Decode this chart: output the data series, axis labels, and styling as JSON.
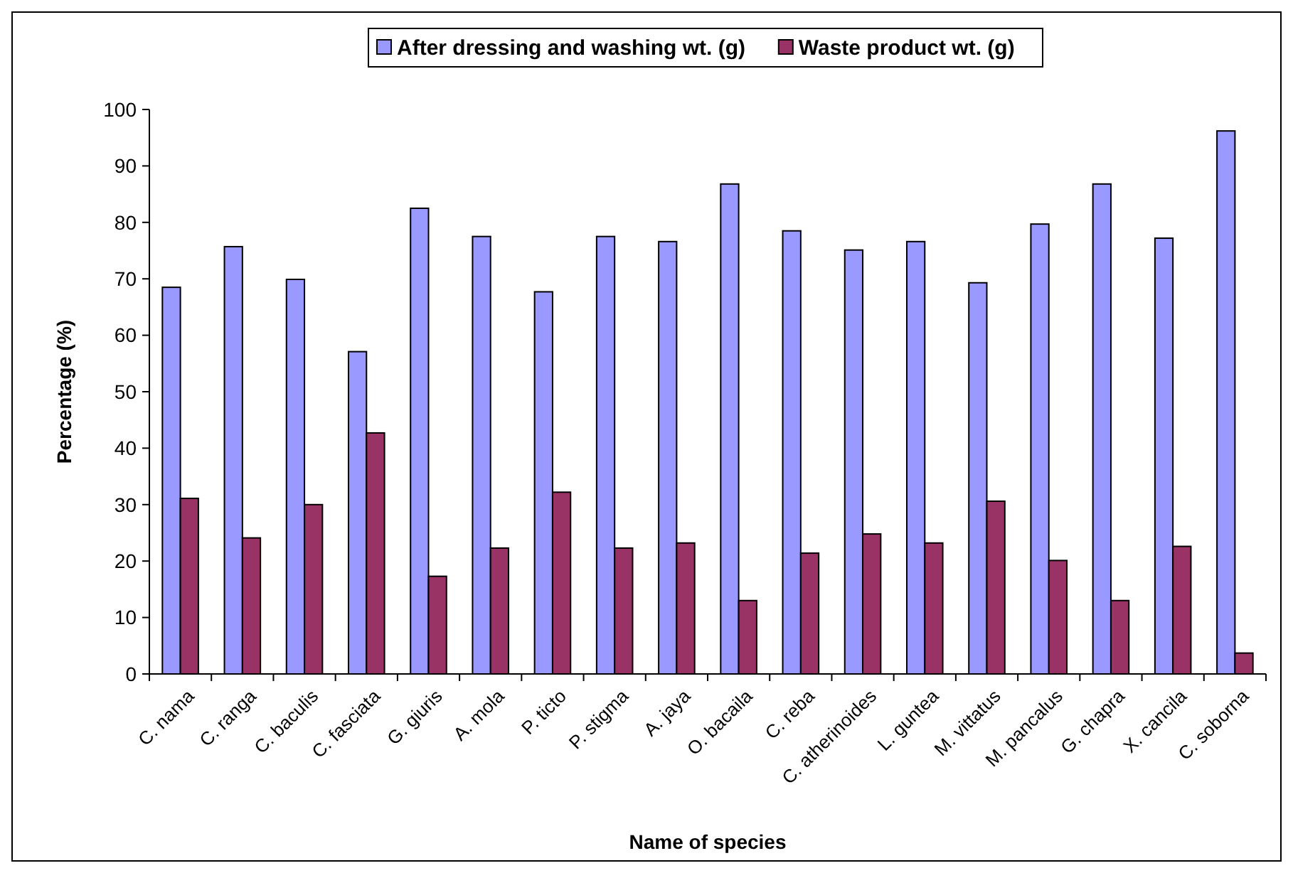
{
  "chart_data": {
    "type": "bar",
    "xlabel": "Name of species",
    "ylabel": "Percentage (%)",
    "categories": [
      "C. nama",
      "C. ranga",
      "C. baculis",
      "C. fasciata",
      "G. giuris",
      "A. mola",
      "P. ticto",
      "P. stigma",
      "A. jaya",
      "O. bacaila",
      "C. reba",
      "C. atherinoides",
      "L. guntea",
      "M. vittatus",
      "M. pancalus",
      "G. chapra",
      "X. cancila",
      "C. soborna"
    ],
    "series": [
      {
        "name": "After dressing and washing wt. (g)",
        "color": "#9999ff",
        "values": [
          68.5,
          75.7,
          69.9,
          57.1,
          82.5,
          77.5,
          67.7,
          77.5,
          76.6,
          86.8,
          78.5,
          75.1,
          76.6,
          69.3,
          79.7,
          86.8,
          77.2,
          96.2
        ]
      },
      {
        "name": "Waste product wt. (g)",
        "color": "#993366",
        "values": [
          31.1,
          24.1,
          30.0,
          42.7,
          17.3,
          22.3,
          32.2,
          22.3,
          23.2,
          13.0,
          21.4,
          24.8,
          23.2,
          30.6,
          20.1,
          13.0,
          22.6,
          3.7
        ]
      }
    ],
    "ylim": [
      0,
      100
    ],
    "yticks": [
      0,
      10,
      20,
      30,
      40,
      50,
      60,
      70,
      80,
      90,
      100
    ],
    "grid": false,
    "legend": "top"
  }
}
